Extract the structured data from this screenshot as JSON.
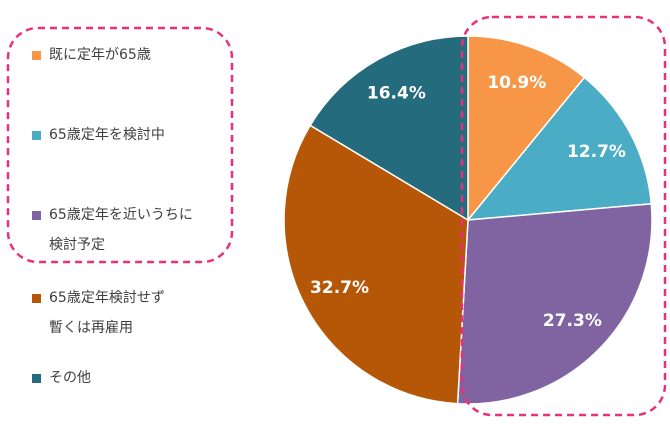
{
  "chart_data": {
    "type": "pie",
    "series": [
      {
        "name": "既に定年が65歳",
        "color": "#F79646"
      },
      {
        "name": "65歳定年を検討中",
        "color": "#4BACC6"
      },
      {
        "name": "65歳定年を近いうちに\n検討予定",
        "color": "#8064A2"
      },
      {
        "name": "65歳定年検討せず\n暫くは再雇用",
        "color": "#B65708"
      },
      {
        "name": "その他",
        "color": "#246B7D"
      }
    ],
    "values": [
      10.9,
      12.7,
      27.3,
      32.7,
      16.4
    ],
    "value_labels": [
      "10.9%",
      "12.7%",
      "27.3%",
      "32.7%",
      "16.4%"
    ]
  }
}
